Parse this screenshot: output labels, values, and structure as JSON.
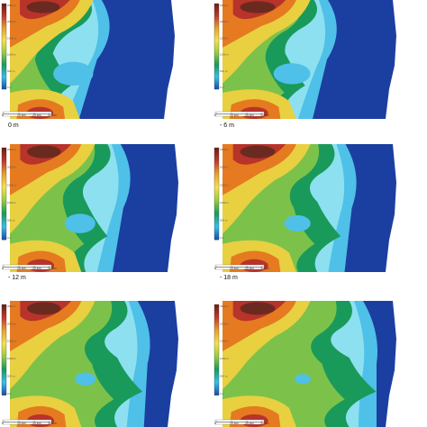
{
  "panels": [
    {
      "id": "p1",
      "caption": "0 m",
      "sea_level_m": 0
    },
    {
      "id": "p2",
      "caption": "- 6 m",
      "sea_level_m": -6
    },
    {
      "id": "p3",
      "caption": "- 12 m",
      "sea_level_m": -12
    },
    {
      "id": "p4",
      "caption": "- 18 m",
      "sea_level_m": -18
    },
    {
      "id": "p5",
      "caption": "",
      "sea_level_m": null
    },
    {
      "id": "p6",
      "caption": "",
      "sea_level_m": null
    }
  ],
  "legend": {
    "labels": [
      "2600 m",
      "2000 m",
      "1500 m",
      "1000 m",
      "500 m",
      "0 m"
    ],
    "colors": [
      "#6b1e10",
      "#c0392b",
      "#e8a030",
      "#f5e050",
      "#9ccc40",
      "#1a9a5a",
      "#38c0e8",
      "#1a4aa8"
    ]
  },
  "scale_bar": {
    "ticks": [
      "0",
      "10 km",
      "20 km",
      "30 km"
    ]
  },
  "colors": {
    "deep_sea": "#1b3fa0",
    "shelf": "#4fc0e8",
    "shallow": "#8de0f0",
    "lowland": "#1a9a5a",
    "plain": "#7cc24a",
    "hills": "#e8d040",
    "high": "#e57a20",
    "peak": "#b8332a",
    "summit": "#6b2a20"
  }
}
